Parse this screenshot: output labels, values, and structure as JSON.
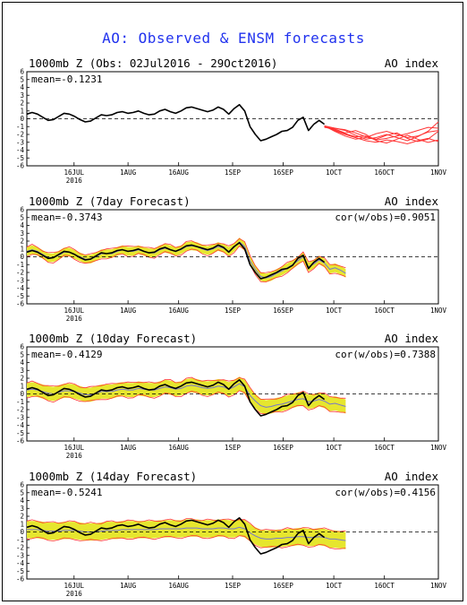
{
  "title": "AO: Observed & ENSM forecasts",
  "colors": {
    "title": "#2233ee",
    "observed": "#000000",
    "forecast_members": "#ff3333",
    "spread": "#e6e62e",
    "ensemble_mean": "#7777cc"
  },
  "chart_data": [
    {
      "type": "line",
      "left_title": "1000mb Z (Obs: 02Jul2016 - 29Oct2016)",
      "right_title": "AO index",
      "mean_text": "mean=-0.1231",
      "cor_text": "",
      "ylim": [
        -6,
        6
      ],
      "yticks": [
        "6",
        "5",
        "4",
        "3",
        "2",
        "1",
        "0",
        "-1",
        "-2",
        "-3",
        "-4",
        "-5",
        "-6"
      ],
      "xticks": [
        "16JUL",
        "1AUG",
        "16AUG",
        "1SEP",
        "16SEP",
        "1OCT",
        "16OCT",
        "1NOV"
      ],
      "year_label": "2016",
      "zero_line": true,
      "spread": false,
      "observed": [
        0.6,
        0.8,
        0.6,
        0.2,
        -0.2,
        -0.1,
        0.3,
        0.7,
        0.6,
        0.3,
        -0.1,
        -0.4,
        -0.3,
        0.1,
        0.5,
        0.4,
        0.5,
        0.8,
        0.9,
        0.7,
        0.8,
        1.0,
        0.7,
        0.5,
        0.6,
        1.0,
        1.2,
        0.9,
        0.7,
        1.0,
        1.4,
        1.5,
        1.3,
        1.1,
        0.9,
        1.1,
        1.5,
        1.2,
        0.6,
        1.3,
        1.8,
        1.0,
        -1.0,
        -2.0,
        -2.8,
        -2.6,
        -2.3,
        -2.0,
        -1.6,
        -1.5,
        -1.1,
        -0.2,
        0.2,
        -1.5,
        -0.7,
        -0.2,
        -0.7
      ],
      "members": [
        [
          -1.0,
          -1.4,
          -1.9,
          -2.3,
          -2.2,
          -2.6,
          -2.1,
          -1.8,
          -2.5,
          -2.9,
          -2.6,
          -1.6
        ],
        [
          -0.9,
          -1.2,
          -1.5,
          -2.1,
          -2.6,
          -2.4,
          -2.0,
          -2.4,
          -2.8,
          -2.3,
          -1.6,
          -0.4
        ],
        [
          -1.1,
          -1.3,
          -1.8,
          -1.5,
          -2.0,
          -2.8,
          -3.1,
          -2.6,
          -2.1,
          -2.6,
          -3.0,
          -2.7
        ],
        [
          -0.9,
          -1.6,
          -2.2,
          -2.6,
          -2.4,
          -1.9,
          -1.6,
          -2.0,
          -2.4,
          -2.2,
          -1.7,
          -1.5
        ],
        [
          -1.0,
          -1.2,
          -1.4,
          -1.8,
          -2.3,
          -2.7,
          -2.5,
          -2.2,
          -1.9,
          -1.5,
          -1.1,
          -1.2
        ],
        [
          -1.0,
          -1.5,
          -2.0,
          -2.4,
          -2.8,
          -3.0,
          -2.7,
          -2.9,
          -3.2,
          -2.8,
          -2.5,
          -2.9
        ]
      ]
    },
    {
      "type": "line",
      "left_title": "1000mb Z (7day Forecast)",
      "right_title": "AO index",
      "mean_text": "mean=-0.3743",
      "cor_text": "cor(w/obs)=0.9051",
      "ylim": [
        -6,
        6
      ],
      "yticks": [
        "6",
        "5",
        "4",
        "3",
        "2",
        "1",
        "0",
        "-1",
        "-2",
        "-3",
        "-4",
        "-5",
        "-6"
      ],
      "xticks": [
        "16JUL",
        "1AUG",
        "16AUG",
        "1SEP",
        "16SEP",
        "1OCT",
        "16OCT",
        "1NOV"
      ],
      "year_label": "2016",
      "zero_line": true,
      "spread": true,
      "spread_halfwidth": 0.55,
      "observed": [
        0.6,
        0.8,
        0.6,
        0.2,
        -0.2,
        -0.1,
        0.3,
        0.7,
        0.6,
        0.3,
        -0.1,
        -0.4,
        -0.3,
        0.1,
        0.5,
        0.4,
        0.5,
        0.8,
        0.9,
        0.7,
        0.8,
        1.0,
        0.7,
        0.5,
        0.6,
        1.0,
        1.2,
        0.9,
        0.7,
        1.0,
        1.4,
        1.5,
        1.3,
        1.1,
        0.9,
        1.1,
        1.5,
        1.2,
        0.6,
        1.3,
        1.8,
        1.0,
        -1.0,
        -2.0,
        -2.8,
        -2.6,
        -2.3,
        -2.0,
        -1.6,
        -1.5,
        -1.1,
        -0.2,
        0.2,
        -1.5,
        -0.7,
        -0.2,
        -0.7
      ],
      "ens_mean": [
        0.7,
        0.9,
        0.7,
        0.3,
        -0.1,
        -0.1,
        0.2,
        0.6,
        0.6,
        0.3,
        0.0,
        -0.3,
        -0.3,
        0.0,
        0.4,
        0.4,
        0.4,
        0.7,
        0.9,
        0.7,
        0.7,
        0.9,
        0.7,
        0.5,
        0.5,
        0.9,
        1.1,
        0.9,
        0.7,
        0.9,
        1.3,
        1.4,
        1.3,
        1.0,
        0.8,
        1.0,
        1.3,
        1.1,
        0.7,
        1.2,
        1.9,
        1.3,
        -0.5,
        -1.6,
        -2.5,
        -2.7,
        -2.5,
        -2.1,
        -1.8,
        -1.4,
        -1.0,
        -0.5,
        0.0,
        -1.3,
        -0.9,
        -0.4,
        -0.8,
        -1.6,
        -1.4,
        -1.7,
        -2.1
      ]
    },
    {
      "type": "line",
      "left_title": "1000mb Z (10day Forecast)",
      "right_title": "AO index",
      "mean_text": "mean=-0.4129",
      "cor_text": "cor(w/obs)=0.7388",
      "ylim": [
        -6,
        6
      ],
      "yticks": [
        "6",
        "5",
        "4",
        "3",
        "2",
        "1",
        "0",
        "-1",
        "-2",
        "-3",
        "-4",
        "-5",
        "-6"
      ],
      "xticks": [
        "16JUL",
        "1AUG",
        "16AUG",
        "1SEP",
        "16SEP",
        "1OCT",
        "16OCT",
        "1NOV"
      ],
      "year_label": "2016",
      "zero_line": true,
      "spread": true,
      "spread_halfwidth": 0.9,
      "observed": [
        0.6,
        0.8,
        0.6,
        0.2,
        -0.2,
        -0.1,
        0.3,
        0.7,
        0.6,
        0.3,
        -0.1,
        -0.4,
        -0.3,
        0.1,
        0.5,
        0.4,
        0.5,
        0.8,
        0.9,
        0.7,
        0.8,
        1.0,
        0.7,
        0.5,
        0.6,
        1.0,
        1.2,
        0.9,
        0.7,
        1.0,
        1.4,
        1.5,
        1.3,
        1.1,
        0.9,
        1.1,
        1.5,
        1.2,
        0.6,
        1.3,
        1.8,
        1.0,
        -1.0,
        -2.0,
        -2.8,
        -2.6,
        -2.3,
        -2.0,
        -1.6,
        -1.5,
        -1.1,
        -0.2,
        0.2,
        -1.5,
        -0.7,
        -0.2,
        -0.7
      ],
      "ens_mean": [
        0.5,
        0.6,
        0.5,
        0.3,
        0.1,
        0.0,
        0.2,
        0.4,
        0.4,
        0.3,
        0.1,
        -0.1,
        -0.1,
        0.1,
        0.3,
        0.3,
        0.3,
        0.5,
        0.6,
        0.5,
        0.5,
        0.7,
        0.6,
        0.5,
        0.5,
        0.7,
        0.9,
        0.8,
        0.6,
        0.7,
        1.0,
        1.1,
        1.0,
        0.8,
        0.7,
        0.8,
        1.0,
        0.9,
        0.6,
        0.9,
        1.3,
        0.9,
        -0.2,
        -0.9,
        -1.5,
        -1.7,
        -1.6,
        -1.4,
        -1.3,
        -1.1,
        -0.9,
        -0.7,
        -0.6,
        -1.0,
        -0.9,
        -0.7,
        -0.9,
        -1.3,
        -1.2,
        -1.4,
        -1.6
      ]
    },
    {
      "type": "line",
      "left_title": "1000mb Z (14day Forecast)",
      "right_title": "AO index",
      "mean_text": "mean=-0.5241",
      "cor_text": "cor(w/obs)=0.4156",
      "ylim": [
        -6,
        6
      ],
      "yticks": [
        "6",
        "5",
        "4",
        "3",
        "2",
        "1",
        "0",
        "-1",
        "-2",
        "-3",
        "-4",
        "-5",
        "-6"
      ],
      "xticks": [
        "16JUL",
        "1AUG",
        "16AUG",
        "1SEP",
        "16SEP",
        "1OCT",
        "16OCT",
        "1NOV"
      ],
      "year_label": "2016",
      "zero_line": true,
      "spread": true,
      "spread_halfwidth": 1.1,
      "observed": [
        0.6,
        0.8,
        0.6,
        0.2,
        -0.2,
        -0.1,
        0.3,
        0.7,
        0.6,
        0.3,
        -0.1,
        -0.4,
        -0.3,
        0.1,
        0.5,
        0.4,
        0.5,
        0.8,
        0.9,
        0.7,
        0.8,
        1.0,
        0.7,
        0.5,
        0.6,
        1.0,
        1.2,
        0.9,
        0.7,
        1.0,
        1.4,
        1.5,
        1.3,
        1.1,
        0.9,
        1.1,
        1.5,
        1.2,
        0.6,
        1.3,
        1.8,
        1.0,
        -1.0,
        -2.0,
        -2.8,
        -2.6,
        -2.3,
        -2.0,
        -1.6,
        -1.5,
        -1.1,
        -0.2,
        0.2,
        -1.5,
        -0.7,
        -0.2,
        -0.7
      ],
      "ens_mean": [
        0.3,
        0.3,
        0.3,
        0.2,
        0.1,
        0.1,
        0.1,
        0.2,
        0.2,
        0.2,
        0.1,
        0.0,
        0.0,
        0.0,
        0.1,
        0.2,
        0.2,
        0.2,
        0.3,
        0.3,
        0.3,
        0.3,
        0.3,
        0.3,
        0.3,
        0.4,
        0.4,
        0.4,
        0.4,
        0.4,
        0.5,
        0.5,
        0.5,
        0.4,
        0.4,
        0.4,
        0.5,
        0.5,
        0.4,
        0.4,
        0.6,
        0.4,
        -0.1,
        -0.5,
        -0.8,
        -0.9,
        -0.9,
        -0.8,
        -0.8,
        -0.7,
        -0.7,
        -0.6,
        -0.6,
        -0.7,
        -0.7,
        -0.6,
        -0.7,
        -0.9,
        -0.9,
        -1.0,
        -1.1
      ]
    }
  ]
}
